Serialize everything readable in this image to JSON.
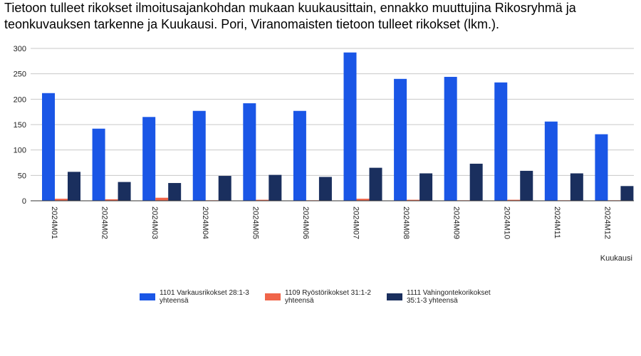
{
  "chart_data": {
    "type": "bar",
    "title": "Tietoon tulleet rikokset ilmoitusajankohdan mukaan kuukausittain, ennakko muuttujina Rikosryhmä ja teonkuvauksen tarkenne ja Kuukausi. Pori, Viranomaisten tietoon tulleet rikokset (lkm.).",
    "xlabel": "Kuukausi",
    "ylabel": "",
    "ylim": [
      0,
      300
    ],
    "yticks": [
      0,
      50,
      100,
      150,
      200,
      250,
      300
    ],
    "grid": true,
    "legend_position": "bottom",
    "categories": [
      "2024M01",
      "2024M02",
      "2024M03",
      "2024M04",
      "2024M05",
      "2024M06",
      "2024M07",
      "2024M08",
      "2024M09",
      "2024M10",
      "2024M11",
      "2024M12"
    ],
    "series": [
      {
        "name": "1101 Varkausrikokset 28:1-3 yhteensä",
        "legend_lines": [
          "1101 Varkausrikokset 28:1-3",
          "yhteensä"
        ],
        "color": "#1a56e6",
        "values": [
          212,
          142,
          165,
          177,
          192,
          177,
          292,
          240,
          244,
          233,
          156,
          131
        ]
      },
      {
        "name": "1109 Ryöstörikokset 31:1-2 yhteensä",
        "legend_lines": [
          "1109 Ryöstörikokset 31:1-2",
          "yhteensä"
        ],
        "color": "#f0654a",
        "values": [
          4,
          3,
          6,
          1,
          2,
          1,
          4,
          2,
          1,
          2,
          1,
          1
        ]
      },
      {
        "name": "1111 Vahingontekorikokset 35:1-3 yhteensä",
        "legend_lines": [
          "1111 Vahingontekorikokset",
          "35:1-3 yhteensä"
        ],
        "color": "#1a2f5e",
        "values": [
          57,
          37,
          35,
          49,
          51,
          47,
          65,
          54,
          73,
          59,
          54,
          29
        ]
      }
    ]
  }
}
